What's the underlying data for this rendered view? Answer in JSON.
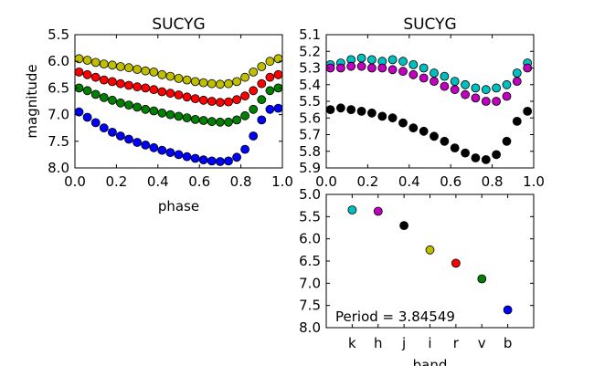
{
  "figure_title": "",
  "chart_data": [
    {
      "type": "scatter",
      "title": "SUCYG",
      "xlabel": "phase",
      "ylabel": "magnitude",
      "xlim": [
        0.0,
        1.0
      ],
      "ylim": [
        5.5,
        8.0
      ],
      "y_inverted": true,
      "xticks": [
        "0.0",
        "0.2",
        "0.4",
        "0.6",
        "0.8",
        "1.0"
      ],
      "yticks": [
        "5.5",
        "6.0",
        "6.5",
        "7.0",
        "7.5",
        "8.0"
      ],
      "series": [
        {
          "band": "i",
          "color": "#bfbf00",
          "x": [
            0.02,
            0.06,
            0.1,
            0.14,
            0.18,
            0.22,
            0.26,
            0.3,
            0.34,
            0.38,
            0.42,
            0.46,
            0.5,
            0.54,
            0.58,
            0.62,
            0.66,
            0.7,
            0.74,
            0.78,
            0.82,
            0.86,
            0.9,
            0.94,
            0.98
          ],
          "y": [
            5.95,
            5.98,
            6.02,
            6.05,
            6.07,
            6.1,
            6.12,
            6.15,
            6.18,
            6.2,
            6.25,
            6.28,
            6.32,
            6.35,
            6.38,
            6.4,
            6.42,
            6.43,
            6.42,
            6.38,
            6.3,
            6.2,
            6.1,
            6.0,
            5.95
          ]
        },
        {
          "band": "r",
          "color": "#ff0000",
          "x": [
            0.02,
            0.06,
            0.1,
            0.14,
            0.18,
            0.22,
            0.26,
            0.3,
            0.34,
            0.38,
            0.42,
            0.46,
            0.5,
            0.54,
            0.58,
            0.62,
            0.66,
            0.7,
            0.74,
            0.78,
            0.82,
            0.86,
            0.9,
            0.94,
            0.98
          ],
          "y": [
            6.2,
            6.25,
            6.3,
            6.35,
            6.38,
            6.42,
            6.45,
            6.48,
            6.5,
            6.53,
            6.57,
            6.6,
            6.63,
            6.67,
            6.7,
            6.73,
            6.75,
            6.77,
            6.76,
            6.72,
            6.65,
            6.55,
            6.42,
            6.3,
            6.25
          ]
        },
        {
          "band": "v",
          "color": "#007f00",
          "x": [
            0.02,
            0.06,
            0.1,
            0.14,
            0.18,
            0.22,
            0.26,
            0.3,
            0.34,
            0.38,
            0.42,
            0.46,
            0.5,
            0.54,
            0.58,
            0.62,
            0.66,
            0.7,
            0.74,
            0.78,
            0.82,
            0.86,
            0.9,
            0.94,
            0.98
          ],
          "y": [
            6.5,
            6.55,
            6.62,
            6.68,
            6.73,
            6.78,
            6.82,
            6.86,
            6.9,
            6.93,
            6.97,
            7.0,
            7.03,
            7.06,
            7.09,
            7.11,
            7.13,
            7.14,
            7.14,
            7.1,
            7.02,
            6.9,
            6.72,
            6.55,
            6.5
          ]
        },
        {
          "band": "b",
          "color": "#0000ff",
          "x": [
            0.02,
            0.06,
            0.1,
            0.14,
            0.18,
            0.22,
            0.26,
            0.3,
            0.34,
            0.38,
            0.42,
            0.46,
            0.5,
            0.54,
            0.58,
            0.62,
            0.66,
            0.7,
            0.74,
            0.78,
            0.82,
            0.86,
            0.9,
            0.94,
            0.98
          ],
          "y": [
            6.95,
            7.05,
            7.15,
            7.25,
            7.33,
            7.4,
            7.46,
            7.52,
            7.57,
            7.62,
            7.67,
            7.71,
            7.75,
            7.79,
            7.82,
            7.85,
            7.87,
            7.88,
            7.87,
            7.8,
            7.65,
            7.4,
            7.1,
            6.9,
            6.88
          ]
        }
      ]
    },
    {
      "type": "scatter",
      "title": "SUCYG",
      "xlabel": "",
      "ylabel": "",
      "xlim": [
        0.0,
        1.0
      ],
      "ylim": [
        5.1,
        5.9
      ],
      "y_inverted": true,
      "xticks": [
        "0.0",
        "0.2",
        "0.4",
        "0.6",
        "0.8",
        "1.0"
      ],
      "yticks": [
        "5.1",
        "5.2",
        "5.3",
        "5.4",
        "5.5",
        "5.6",
        "5.7",
        "5.8",
        "5.9"
      ],
      "series": [
        {
          "band": "k",
          "color": "#00bfbf",
          "x": [
            0.02,
            0.07,
            0.12,
            0.17,
            0.22,
            0.27,
            0.32,
            0.37,
            0.42,
            0.47,
            0.52,
            0.57,
            0.62,
            0.67,
            0.72,
            0.77,
            0.82,
            0.87,
            0.92,
            0.97
          ],
          "y": [
            5.28,
            5.27,
            5.25,
            5.24,
            5.25,
            5.26,
            5.25,
            5.26,
            5.28,
            5.3,
            5.33,
            5.35,
            5.38,
            5.4,
            5.42,
            5.43,
            5.42,
            5.4,
            5.33,
            5.27
          ]
        },
        {
          "band": "h",
          "color": "#bf00bf",
          "x": [
            0.02,
            0.07,
            0.12,
            0.17,
            0.22,
            0.27,
            0.32,
            0.37,
            0.42,
            0.47,
            0.52,
            0.57,
            0.62,
            0.67,
            0.72,
            0.77,
            0.82,
            0.87,
            0.92,
            0.97
          ],
          "y": [
            5.3,
            5.3,
            5.29,
            5.29,
            5.3,
            5.3,
            5.31,
            5.32,
            5.34,
            5.36,
            5.38,
            5.41,
            5.43,
            5.46,
            5.48,
            5.5,
            5.5,
            5.47,
            5.38,
            5.3
          ]
        },
        {
          "band": "j",
          "color": "#000000",
          "x": [
            0.02,
            0.07,
            0.12,
            0.17,
            0.22,
            0.27,
            0.32,
            0.37,
            0.42,
            0.47,
            0.52,
            0.57,
            0.62,
            0.67,
            0.72,
            0.77,
            0.82,
            0.87,
            0.92,
            0.97
          ],
          "y": [
            5.55,
            5.54,
            5.55,
            5.56,
            5.57,
            5.59,
            5.6,
            5.63,
            5.66,
            5.68,
            5.71,
            5.74,
            5.78,
            5.81,
            5.84,
            5.85,
            5.82,
            5.74,
            5.62,
            5.56
          ]
        }
      ]
    },
    {
      "type": "scatter",
      "title": "",
      "xlabel": "band",
      "ylabel": "",
      "ylim": [
        5.0,
        8.0
      ],
      "y_inverted": true,
      "categories": [
        "k",
        "h",
        "j",
        "i",
        "r",
        "v",
        "b"
      ],
      "values": [
        5.35,
        5.38,
        5.7,
        6.25,
        6.55,
        6.9,
        7.6
      ],
      "colors": [
        "#00bfbf",
        "#bf00bf",
        "#000000",
        "#bfbf00",
        "#ff0000",
        "#007f00",
        "#0000ff"
      ],
      "yticks": [
        "5.0",
        "5.5",
        "6.0",
        "6.5",
        "7.0",
        "7.5",
        "8.0"
      ],
      "annotation": "Period = 3.84549"
    }
  ]
}
